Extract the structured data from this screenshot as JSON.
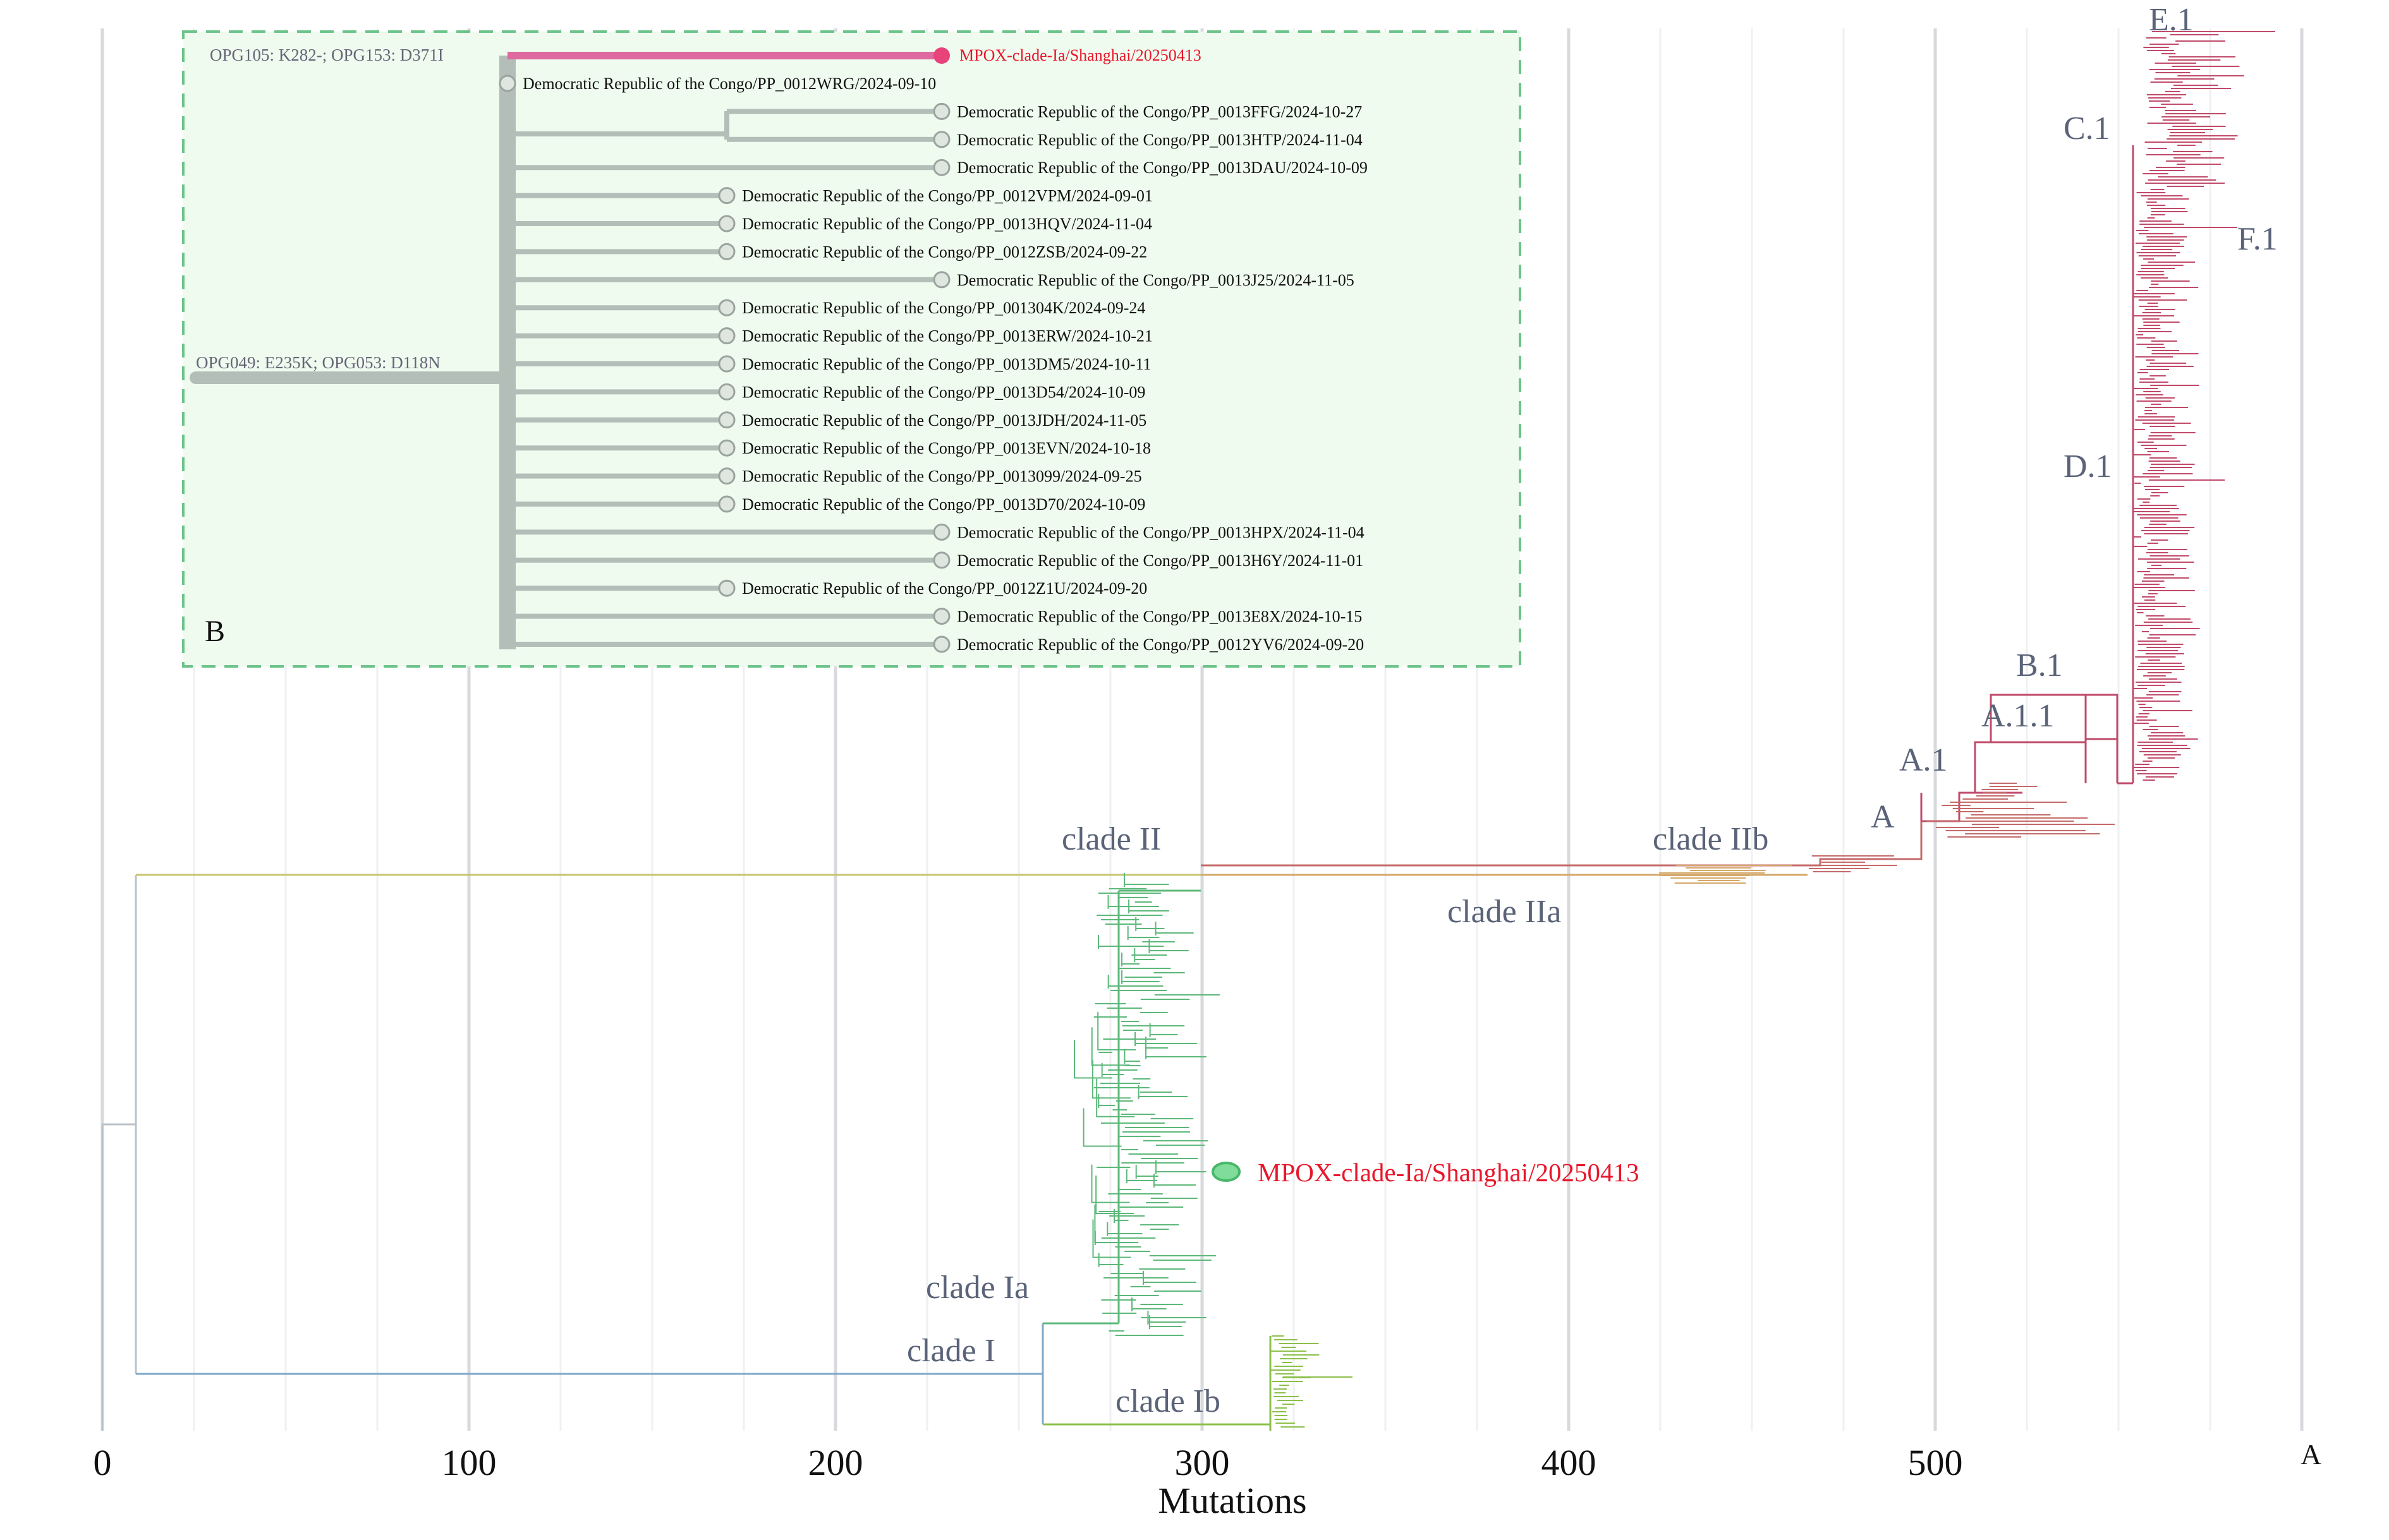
{
  "axis": {
    "xlabel": "Mutations",
    "ticks": [
      "0",
      "100",
      "200",
      "300",
      "400",
      "500"
    ],
    "range": [
      0,
      600
    ]
  },
  "panel_letters": {
    "a": "A",
    "b": "B"
  },
  "clade_labels": {
    "clade_ii": "clade II",
    "clade_iib": "clade IIb",
    "clade_iia": "clade IIa",
    "clade_ia": "clade Ia",
    "clade_i": "clade I",
    "clade_ib": "clade Ib",
    "lin_a": "A",
    "lin_a1": "A.1",
    "lin_a11": "A.1.1",
    "lin_b1": "B.1",
    "lin_c1": "C.1",
    "lin_d1": "D.1",
    "lin_e1": "E.1",
    "lin_f1": "F.1"
  },
  "highlight": {
    "label": "MPOX-clade-Ia/Shanghai/20250413",
    "color": "#e8172b"
  },
  "inset": {
    "root_branch_label": "OPG049: E235K; OPG053: D118N",
    "branch_label": "OPG105: K282-; OPG153: D371I",
    "highlight_tip": "MPOX-clade-Ia/Shanghai/20250413",
    "tips": [
      "Democratic Republic of the Congo/PP_0012WRG/2024-09-10",
      "Democratic Republic of the Congo/PP_0013FFG/2024-10-27",
      "Democratic Republic of the Congo/PP_0013HTP/2024-11-04",
      "Democratic Republic of the Congo/PP_0013DAU/2024-10-09",
      "Democratic Republic of the Congo/PP_0012VPM/2024-09-01",
      "Democratic Republic of the Congo/PP_0013HQV/2024-11-04",
      "Democratic Republic of the Congo/PP_0012ZSB/2024-09-22",
      "Democratic Republic of the Congo/PP_0013J25/2024-11-05",
      "Democratic Republic of the Congo/PP_001304K/2024-09-24",
      "Democratic Republic of the Congo/PP_0013ERW/2024-10-21",
      "Democratic Republic of the Congo/PP_0013DM5/2024-10-11",
      "Democratic Republic of the Congo/PP_0013D54/2024-10-09",
      "Democratic Republic of the Congo/PP_0013JDH/2024-11-05",
      "Democratic Republic of the Congo/PP_0013EVN/2024-10-18",
      "Democratic Republic of the Congo/PP_0013099/2024-09-25",
      "Democratic Republic of the Congo/PP_0013D70/2024-10-09",
      "Democratic Republic of the Congo/PP_0013HPX/2024-11-04",
      "Democratic Republic of the Congo/PP_0013H6Y/2024-11-01",
      "Democratic Republic of the Congo/PP_0012Z1U/2024-09-20",
      "Democratic Republic of the Congo/PP_0013E8X/2024-10-15",
      "Democratic Republic of the Congo/PP_0012YV6/2024-09-20"
    ]
  },
  "colors": {
    "clade_i": "#7fa8c9",
    "clade_ia": "#5cb87a",
    "clade_ib": "#8cc04a",
    "clade_ii": "#c8c46e",
    "clade_iia": "#d4a86a",
    "clade_iib": "#c46a6a",
    "lineage_b1": "#c04a6a",
    "label_gray": "#5a6378",
    "inset_bg": "#effbef",
    "inset_border": "#6cc48a",
    "inset_branch": "#b4beb8",
    "inset_highlight": "#de6aa0"
  }
}
